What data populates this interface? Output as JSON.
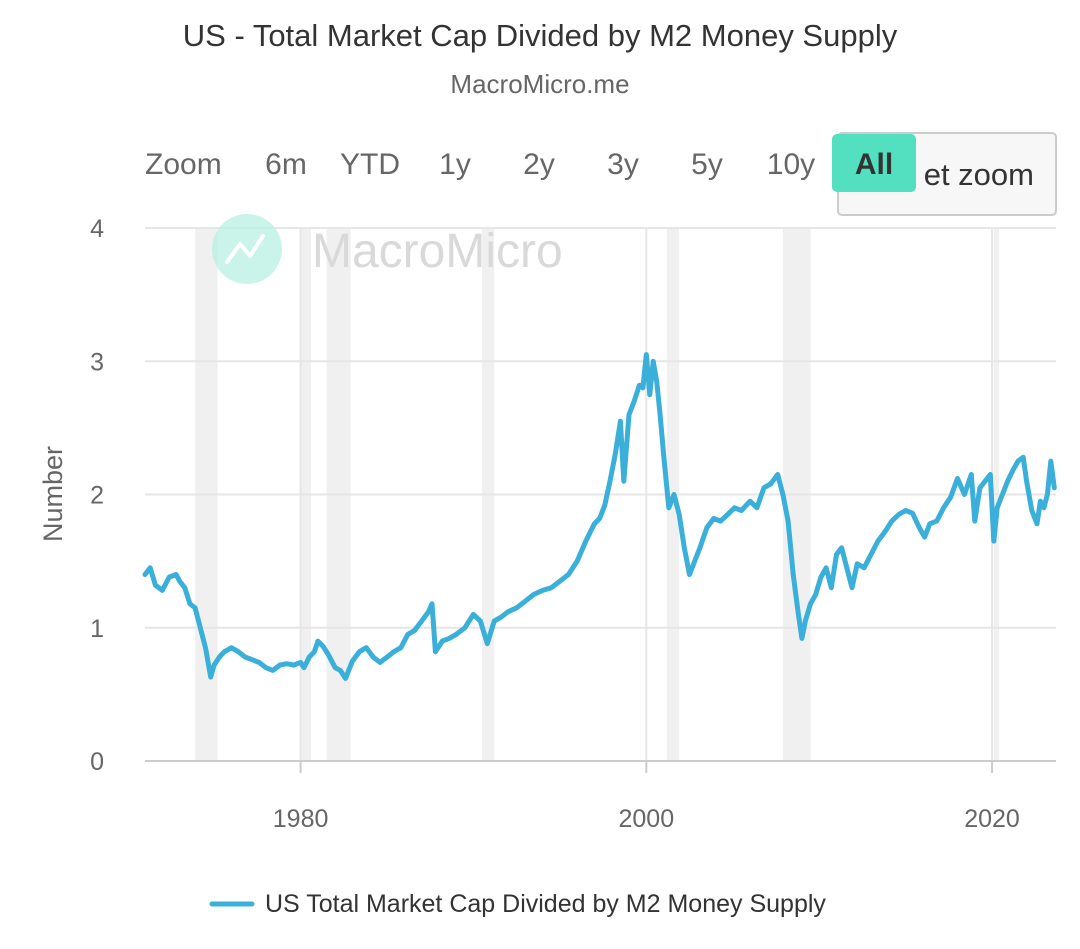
{
  "title": "US - Total Market Cap Divided by M2 Money Supply",
  "subtitle": "MacroMicro.me",
  "watermark": "MacroMicro",
  "range_selector": {
    "label": "Zoom",
    "buttons": [
      "6m",
      "YTD",
      "1y",
      "2y",
      "3y",
      "5y",
      "10y",
      "All"
    ],
    "selected": "All",
    "reset_label": "Reset zoom",
    "reset_visible_fragment": "et zoom"
  },
  "colors": {
    "series": "#3aafd9",
    "active_button": "#52e0c0",
    "recession_band": "#f0f0f0",
    "grid": "#e6e6e6",
    "watermark_logo": "#b8f0e2"
  },
  "chart_data": {
    "type": "line",
    "title": "US - Total Market Cap Divided by M2 Money Supply",
    "ylabel": "Number",
    "xlabel": "",
    "xlim": [
      1971.0,
      2023.7
    ],
    "ylim": [
      0,
      4
    ],
    "y_ticks": [
      0,
      1,
      2,
      3,
      4
    ],
    "x_ticks": [
      1980,
      2000,
      2020
    ],
    "grid": true,
    "legend_position": "bottom-center",
    "recessions": [
      [
        1973.9,
        1975.2
      ],
      [
        1980.0,
        1980.6
      ],
      [
        1981.5,
        1982.9
      ],
      [
        1990.5,
        1991.2
      ],
      [
        2001.2,
        2001.9
      ],
      [
        2007.9,
        2009.5
      ],
      [
        2020.1,
        2020.4
      ]
    ],
    "series": [
      {
        "name": "US Total Market Cap Divided by M2 Money Supply",
        "x": [
          1971.0,
          1971.3,
          1971.6,
          1972.0,
          1972.4,
          1972.8,
          1973.0,
          1973.3,
          1973.6,
          1973.9,
          1974.2,
          1974.5,
          1974.8,
          1975.0,
          1975.3,
          1975.6,
          1976.0,
          1976.4,
          1976.8,
          1977.2,
          1977.6,
          1978.0,
          1978.4,
          1978.8,
          1979.2,
          1979.6,
          1980.0,
          1980.2,
          1980.5,
          1980.8,
          1981.0,
          1981.3,
          1981.6,
          1982.0,
          1982.3,
          1982.6,
          1983.0,
          1983.4,
          1983.8,
          1984.2,
          1984.6,
          1985.0,
          1985.4,
          1985.8,
          1986.2,
          1986.6,
          1987.0,
          1987.4,
          1987.6,
          1987.8,
          1988.2,
          1988.6,
          1989.0,
          1989.5,
          1990.0,
          1990.4,
          1990.8,
          1991.2,
          1991.6,
          1992.0,
          1992.5,
          1993.0,
          1993.5,
          1994.0,
          1994.5,
          1995.0,
          1995.5,
          1996.0,
          1996.5,
          1997.0,
          1997.3,
          1997.6,
          1997.9,
          1998.2,
          1998.5,
          1998.7,
          1999.0,
          1999.3,
          1999.6,
          1999.8,
          2000.0,
          2000.2,
          2000.4,
          2000.6,
          2000.8,
          2001.0,
          2001.3,
          2001.6,
          2001.9,
          2002.2,
          2002.5,
          2002.8,
          2003.1,
          2003.5,
          2003.9,
          2004.3,
          2004.7,
          2005.1,
          2005.5,
          2006.0,
          2006.4,
          2006.8,
          2007.2,
          2007.6,
          2007.9,
          2008.2,
          2008.5,
          2008.8,
          2009.0,
          2009.2,
          2009.5,
          2009.8,
          2010.1,
          2010.4,
          2010.7,
          2011.0,
          2011.3,
          2011.6,
          2011.9,
          2012.2,
          2012.6,
          2013.0,
          2013.4,
          2013.8,
          2014.2,
          2014.6,
          2015.0,
          2015.4,
          2015.8,
          2016.1,
          2016.4,
          2016.8,
          2017.2,
          2017.6,
          2018.0,
          2018.4,
          2018.8,
          2019.0,
          2019.3,
          2019.6,
          2019.9,
          2020.1,
          2020.3,
          2020.6,
          2020.9,
          2021.2,
          2021.5,
          2021.8,
          2022.0,
          2022.3,
          2022.6,
          2022.8,
          2023.0,
          2023.2,
          2023.4,
          2023.6
        ],
        "values": [
          1.4,
          1.45,
          1.32,
          1.28,
          1.38,
          1.4,
          1.35,
          1.3,
          1.18,
          1.15,
          1.0,
          0.85,
          0.63,
          0.72,
          0.78,
          0.82,
          0.85,
          0.82,
          0.78,
          0.76,
          0.74,
          0.7,
          0.68,
          0.72,
          0.73,
          0.72,
          0.74,
          0.7,
          0.78,
          0.82,
          0.9,
          0.86,
          0.8,
          0.7,
          0.68,
          0.62,
          0.75,
          0.82,
          0.85,
          0.78,
          0.74,
          0.78,
          0.82,
          0.85,
          0.95,
          0.98,
          1.05,
          1.12,
          1.18,
          0.82,
          0.9,
          0.92,
          0.95,
          1.0,
          1.1,
          1.05,
          0.88,
          1.05,
          1.08,
          1.12,
          1.15,
          1.2,
          1.25,
          1.28,
          1.3,
          1.35,
          1.4,
          1.5,
          1.65,
          1.78,
          1.82,
          1.92,
          2.1,
          2.3,
          2.55,
          2.1,
          2.6,
          2.7,
          2.82,
          2.8,
          3.05,
          2.75,
          3.0,
          2.85,
          2.6,
          2.3,
          1.9,
          2.0,
          1.85,
          1.6,
          1.4,
          1.5,
          1.6,
          1.75,
          1.82,
          1.8,
          1.85,
          1.9,
          1.88,
          1.95,
          1.9,
          2.05,
          2.08,
          2.15,
          2.0,
          1.8,
          1.4,
          1.1,
          0.92,
          1.05,
          1.18,
          1.25,
          1.38,
          1.45,
          1.3,
          1.55,
          1.6,
          1.45,
          1.3,
          1.48,
          1.45,
          1.55,
          1.65,
          1.72,
          1.8,
          1.85,
          1.88,
          1.86,
          1.75,
          1.68,
          1.78,
          1.8,
          1.9,
          1.98,
          2.12,
          2.0,
          2.15,
          1.8,
          2.05,
          2.1,
          2.15,
          1.65,
          1.9,
          2.0,
          2.1,
          2.18,
          2.25,
          2.28,
          2.1,
          1.88,
          1.78,
          1.95,
          1.9,
          2.0,
          2.25,
          2.05
        ]
      }
    ]
  }
}
